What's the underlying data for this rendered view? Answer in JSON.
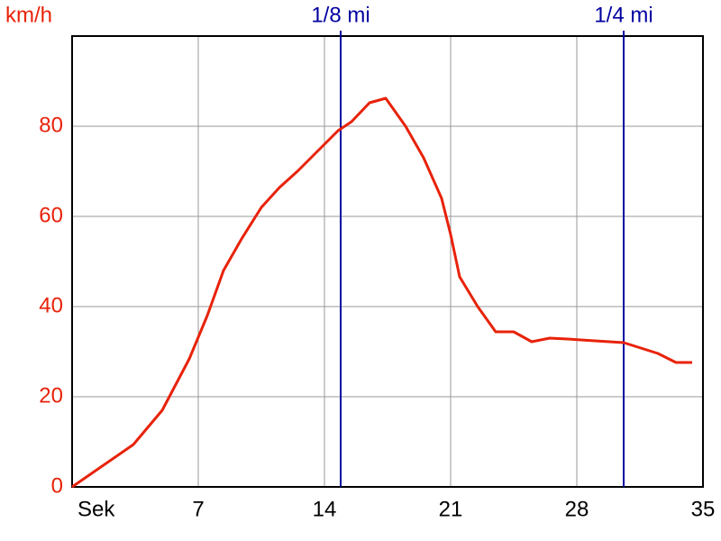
{
  "chart_data": {
    "type": "line",
    "y_label": "km/h",
    "x": [
      0,
      3.4,
      5,
      6.5,
      7.5,
      8.4,
      9.4,
      10.5,
      11.5,
      12.5,
      13.75,
      14.75,
      15.5,
      16.5,
      17.4,
      18.5,
      19.5,
      20.5,
      21,
      21.5,
      22.5,
      23.5,
      24.5,
      25.5,
      26.5,
      27.5,
      29,
      30.6,
      32.5,
      33.5,
      34.4
    ],
    "series": [
      {
        "color": "#e8220a",
        "values": [
          0,
          9.4,
          17,
          28.4,
          38,
          48,
          55,
          62,
          66.4,
          70,
          75,
          79,
          81,
          85.2,
          86.2,
          80,
          73,
          64,
          56,
          46.6,
          40,
          34.4,
          34.4,
          32.2,
          33,
          32.8,
          32.4,
          32,
          29.6,
          27.6,
          27.6
        ]
      }
    ],
    "xlim": [
      0,
      35
    ],
    "xticks": [
      {
        "value": 0,
        "label": "Sek"
      },
      7,
      14,
      21,
      28,
      35
    ],
    "ylim": [
      0,
      100
    ],
    "yticks": [
      0,
      20,
      40,
      60,
      80
    ],
    "grid": true,
    "markers": [
      {
        "label": "1/8 mi",
        "x": 14.9,
        "color": "#0000a0"
      },
      {
        "label": "1/4 mi",
        "x": 30.6,
        "color": "#0000a0"
      }
    ]
  }
}
